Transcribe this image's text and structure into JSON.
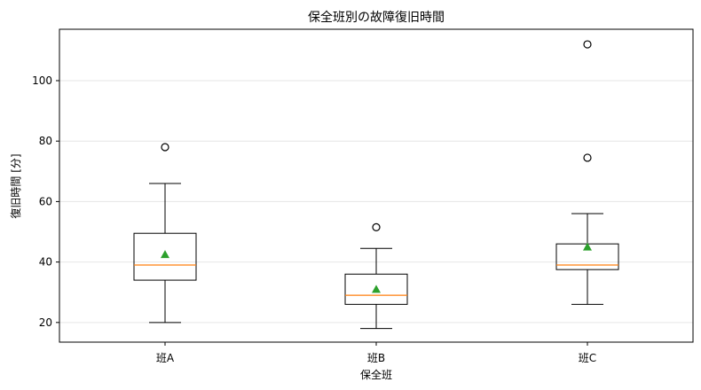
{
  "chart_data": {
    "type": "box",
    "title": "保全班別の故障復旧時間",
    "xlabel": "保全班",
    "ylabel": "復旧時間 [分]",
    "ylim": [
      13.5,
      117
    ],
    "yticks": [
      20,
      40,
      60,
      80,
      100
    ],
    "grid": "horizontal",
    "categories": [
      "班A",
      "班B",
      "班C"
    ],
    "boxes": [
      {
        "name": "班A",
        "whisker_low": 20,
        "q1": 34,
        "median": 39,
        "q3": 49.5,
        "whisker_high": 66,
        "mean": 42.5,
        "outliers": [
          78
        ]
      },
      {
        "name": "班B",
        "whisker_low": 18,
        "q1": 26,
        "median": 29,
        "q3": 36,
        "whisker_high": 44.5,
        "mean": 31,
        "outliers": [
          51.5
        ]
      },
      {
        "name": "班C",
        "whisker_low": 26,
        "q1": 37.5,
        "median": 39,
        "q3": 46,
        "whisker_high": 56,
        "mean": 45,
        "outliers": [
          74.5,
          112
        ]
      }
    ],
    "colors": {
      "box": "#000000",
      "median": "#ff7f0e",
      "mean": "#2ca02c",
      "grid": "#e6e6e6"
    }
  }
}
